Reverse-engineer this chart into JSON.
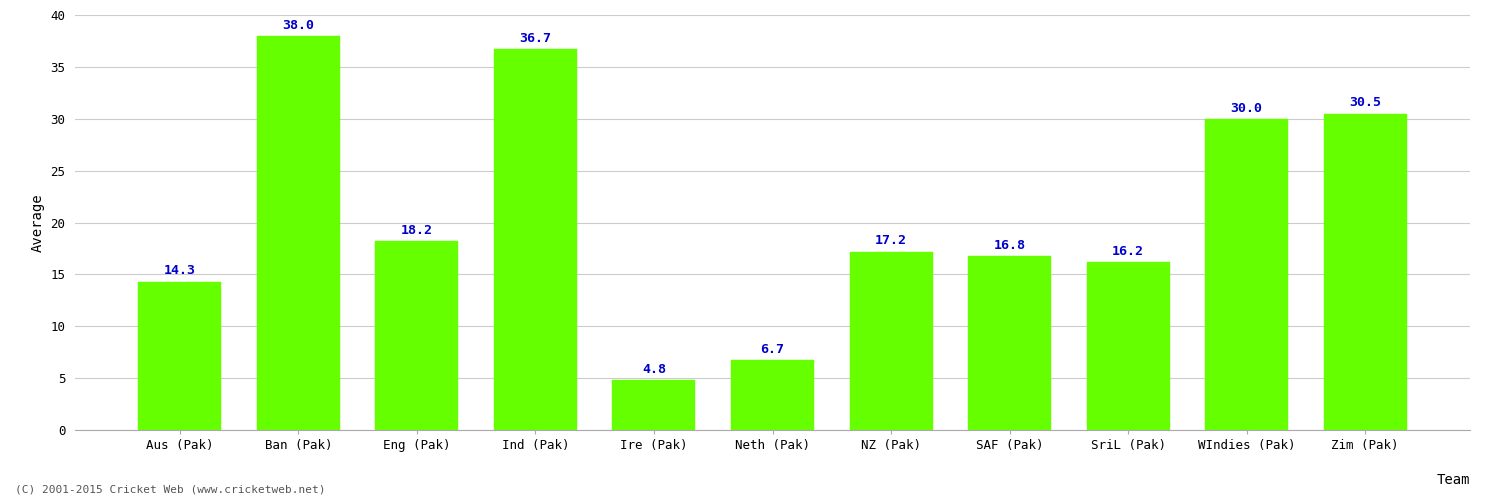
{
  "categories": [
    "Aus (Pak)",
    "Ban (Pak)",
    "Eng (Pak)",
    "Ind (Pak)",
    "Ire (Pak)",
    "Neth (Pak)",
    "NZ (Pak)",
    "SAF (Pak)",
    "SriL (Pak)",
    "WIndies (Pak)",
    "Zim (Pak)"
  ],
  "values": [
    14.3,
    38.0,
    18.2,
    36.7,
    4.8,
    6.7,
    17.2,
    16.8,
    16.2,
    30.0,
    30.5
  ],
  "bar_color": "#66ff00",
  "bar_edge_color": "#66ff00",
  "label_color": "#0000cc",
  "xlabel": "Team",
  "ylabel": "Average",
  "ylim": [
    0,
    40
  ],
  "yticks": [
    0,
    5,
    10,
    15,
    20,
    25,
    30,
    35,
    40
  ],
  "grid_color": "#cccccc",
  "background_color": "#ffffff",
  "label_fontsize": 9.5,
  "axis_label_fontsize": 10,
  "tick_fontsize": 9,
  "footer": "(C) 2001-2015 Cricket Web (www.cricketweb.net)",
  "bar_width": 0.7
}
